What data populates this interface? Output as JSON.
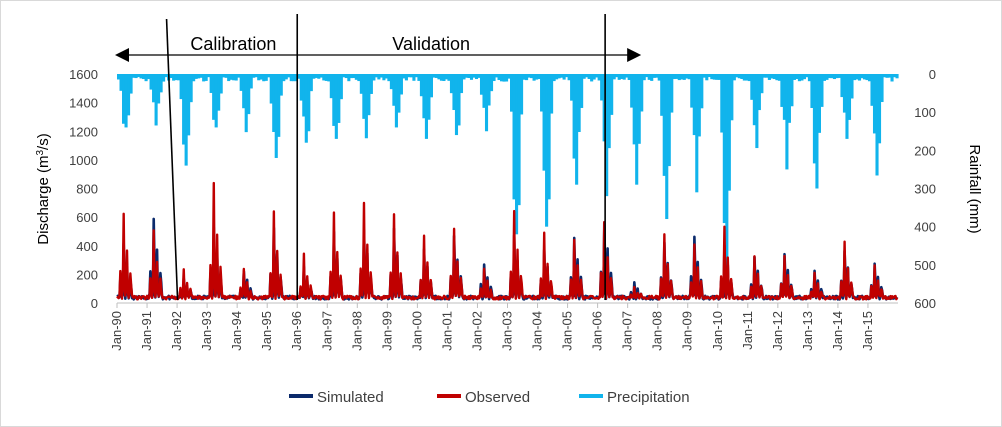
{
  "chart_data": {
    "type": "bar+line",
    "x_tick_labels": [
      "Jan-90",
      "Jan-91",
      "Jan-92",
      "Jan-93",
      "Jan-94",
      "Jan-95",
      "Jan-96",
      "Jan-97",
      "Jan-98",
      "Jan-99",
      "Jan-00",
      "Jan-01",
      "Jan-02",
      "Jan-03",
      "Jan-04",
      "Jan-05",
      "Jan-06",
      "Jan-07",
      "Jan-08",
      "Jan-09",
      "Jan-10",
      "Jan-11",
      "Jan-12",
      "Jan-13",
      "Jan-14",
      "Jan-15"
    ],
    "x_start": "Jan-1990",
    "x_end": "Dec-2015",
    "left_axis": {
      "label_prefix": "Discharge (m",
      "label_sup": "3",
      "label_suffix": "/s)",
      "ylim": [
        0,
        1600
      ],
      "ticks": [
        "0",
        "200",
        "400",
        "600",
        "800",
        "1000",
        "1200",
        "1400",
        "1600"
      ]
    },
    "right_axis": {
      "label": "Rainfall (mm)",
      "ylim": [
        0,
        600
      ],
      "inverted": true,
      "ticks": [
        "0",
        "100",
        "200",
        "300",
        "400",
        "500",
        "600"
      ]
    },
    "periods": [
      {
        "name": "Calibration",
        "start": 1991.75,
        "end": 1996.0
      },
      {
        "name": "Validation",
        "start": 1996.0,
        "end": 2006.25
      }
    ],
    "arrow_span": [
      1990.0,
      2007.25
    ],
    "colors": {
      "simulated": "#0b2a6b",
      "observed": "#c00000",
      "precipitation": "#11b4ec",
      "marker": "#000000",
      "axis": "#bfbfbf"
    },
    "annual_peaks": {
      "years": [
        1990,
        1991,
        1992,
        1993,
        1994,
        1995,
        1996,
        1997,
        1998,
        1999,
        2000,
        2001,
        2002,
        2003,
        2004,
        2005,
        2006,
        2007,
        2008,
        2009,
        2010,
        2011,
        2012,
        2013,
        2014,
        2015
      ],
      "observed": [
        590,
        470,
        190,
        800,
        200,
        600,
        300,
        600,
        670,
        590,
        450,
        480,
        200,
        600,
        460,
        420,
        540,
        80,
        440,
        380,
        510,
        290,
        290,
        170,
        390,
        240
      ],
      "simulated": [
        440,
        640,
        170,
        560,
        220,
        560,
        250,
        520,
        560,
        560,
        400,
        510,
        280,
        500,
        390,
        490,
        620,
        110,
        450,
        480,
        430,
        330,
        360,
        230,
        390,
        270
      ],
      "precipitation": [
        140,
        130,
        240,
        140,
        140,
        220,
        180,
        170,
        150,
        140,
        170,
        160,
        150,
        420,
        400,
        290,
        320,
        290,
        380,
        310,
        540,
        180,
        250,
        300,
        170,
        260
      ]
    },
    "legend": [
      {
        "name": "Simulated",
        "key": "simulated"
      },
      {
        "name": "Observed",
        "key": "observed"
      },
      {
        "name": "Precipitation",
        "key": "precipitation"
      }
    ]
  }
}
